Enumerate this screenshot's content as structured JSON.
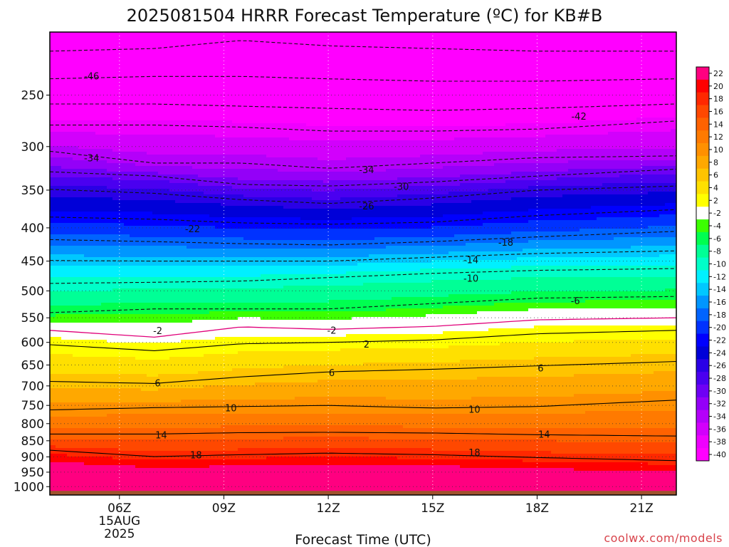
{
  "chart_data": {
    "type": "heatmap",
    "title": "2025081504 HRRR Forecast Temperature (ºC) for KB#B",
    "xlabel": "Forecast Time (UTC)",
    "ylabel": "",
    "credit": "coolwx.com/models",
    "x_ticks": [
      {
        "hour": 6,
        "label": "06Z",
        "sub": [
          "15AUG",
          "2025"
        ]
      },
      {
        "hour": 9,
        "label": "09Z"
      },
      {
        "hour": 12,
        "label": "12Z"
      },
      {
        "hour": 15,
        "label": "15Z"
      },
      {
        "hour": 18,
        "label": "18Z"
      },
      {
        "hour": 21,
        "label": "21Z"
      }
    ],
    "xlim": [
      4,
      22
    ],
    "y_ticks": [
      250,
      300,
      350,
      400,
      450,
      500,
      550,
      600,
      650,
      700,
      750,
      800,
      850,
      900,
      950,
      1000
    ],
    "ylim": [
      200,
      1030
    ],
    "y_scale": "log",
    "y_reversed": true,
    "surface_pressure": 1015,
    "surface_color": "#a0522d",
    "grid": true,
    "legend_location": "right",
    "colorbar": {
      "levels": [
        22,
        20,
        18,
        16,
        14,
        12,
        10,
        8,
        6,
        4,
        2,
        -2,
        -4,
        -6,
        -8,
        -10,
        -12,
        -14,
        -16,
        -18,
        -20,
        -22,
        -24,
        -26,
        -28,
        -30,
        -32,
        -34,
        -36,
        -38,
        -40
      ],
      "colors": [
        "#ff0080",
        "#ff0000",
        "#ff2800",
        "#ff4800",
        "#ff6200",
        "#ff7a00",
        "#ff9000",
        "#ffa800",
        "#ffc400",
        "#ffe000",
        "#ffff00",
        "#ffffff",
        "#3cff00",
        "#00ff50",
        "#00ff96",
        "#00ffc8",
        "#00f0ff",
        "#00c8ff",
        "#0096ff",
        "#0064ff",
        "#0032ff",
        "#0000ff",
        "#0000d8",
        "#2a00e6",
        "#4a00f0",
        "#6e00f5",
        "#9400f8",
        "#b400fa",
        "#d200fc",
        "#ee00fe",
        "#ff00ff"
      ]
    },
    "series": [
      {
        "x": [
          4,
          7,
          9.5,
          12,
          15,
          18,
          22
        ],
        "y": [
          575,
          589,
          568,
          573,
          567,
          554,
          550
        ],
        "temp": 0
      },
      {
        "x": [
          4,
          7,
          9.5,
          12,
          15,
          18,
          22
        ],
        "y": [
          605,
          618,
          603,
          600,
          595,
          582,
          575
        ],
        "temp": 2
      },
      {
        "x": [
          4,
          7,
          9.5,
          12,
          15,
          18,
          22
        ],
        "y": [
          689,
          694,
          678,
          666,
          660,
          652,
          642
        ],
        "temp": 6
      },
      {
        "x": [
          4,
          7,
          9.5,
          12,
          15,
          18,
          22
        ],
        "y": [
          762,
          756,
          753,
          750,
          757,
          753,
          736
        ],
        "temp": 10
      },
      {
        "x": [
          4,
          7,
          9.5,
          12,
          15,
          18,
          22
        ],
        "y": [
          830,
          830,
          826,
          825,
          827,
          832,
          836
        ],
        "temp": 14
      },
      {
        "x": [
          4,
          7,
          9.5,
          12,
          15,
          18,
          22
        ],
        "y": [
          879,
          899,
          893,
          888,
          893,
          902,
          912
        ],
        "temp": 18
      },
      {
        "x": [
          4,
          7,
          9.5,
          12,
          15,
          18,
          22
        ],
        "y": [
          540,
          533,
          533,
          533,
          523,
          513,
          510
        ],
        "temp": -6
      },
      {
        "x": [
          4,
          7,
          9.5,
          12,
          15,
          18,
          22
        ],
        "y": [
          487,
          485,
          483,
          477,
          470,
          465,
          462
        ],
        "temp": -10
      },
      {
        "x": [
          4,
          7,
          9.5,
          12,
          15,
          18,
          22
        ],
        "y": [
          449,
          450,
          450,
          450,
          444,
          438,
          434
        ],
        "temp": -14
      },
      {
        "x": [
          4,
          7,
          9.5,
          12,
          15,
          18,
          22
        ],
        "y": [
          417,
          420,
          423,
          425,
          420,
          413,
          405
        ],
        "temp": -18
      },
      {
        "x": [
          4,
          7,
          9.5,
          12,
          15,
          18,
          22
        ],
        "y": [
          385,
          388,
          393,
          395,
          392,
          383,
          375
        ],
        "temp": -22
      },
      {
        "x": [
          4,
          7,
          9.5,
          12,
          15,
          18,
          22
        ],
        "y": [
          349,
          354,
          362,
          367,
          360,
          350,
          345
        ],
        "temp": -26
      },
      {
        "x": [
          4,
          7,
          9.5,
          12,
          15,
          18,
          22
        ],
        "y": [
          328,
          333,
          343,
          345,
          340,
          333,
          325
        ],
        "temp": -30
      },
      {
        "x": [
          4,
          7,
          9.5,
          12,
          15,
          18,
          22
        ],
        "y": [
          305,
          318,
          318,
          324,
          318,
          312,
          310
        ],
        "temp": -34
      },
      {
        "x": [
          4,
          7,
          9.5,
          12,
          15,
          18,
          22
        ],
        "y": [
          278,
          278,
          280,
          284,
          284,
          282,
          274
        ],
        "temp": -38
      },
      {
        "x": [
          4,
          7,
          9.5,
          12,
          15,
          18,
          22
        ],
        "y": [
          258,
          258,
          260,
          262,
          264,
          262,
          258
        ],
        "temp": -42
      },
      {
        "x": [
          4,
          7,
          9.5,
          12,
          15,
          18,
          22
        ],
        "y": [
          236,
          234,
          234,
          236,
          238,
          238,
          236
        ],
        "temp": -46
      },
      {
        "x": [
          4,
          7,
          9.5,
          12,
          15,
          18,
          22
        ],
        "y": [
          214,
          212,
          206,
          210,
          212,
          214,
          214
        ],
        "temp": -50
      }
    ],
    "contour_labels": [
      {
        "text": "-46",
        "x": 5.2,
        "y": 234
      },
      {
        "text": "-42",
        "x": 19.2,
        "y": 270
      },
      {
        "text": "-34",
        "x": 5.2,
        "y": 313
      },
      {
        "text": "-34",
        "x": 13.1,
        "y": 326
      },
      {
        "text": "-30",
        "x": 14.1,
        "y": 346
      },
      {
        "text": "-26",
        "x": 13.1,
        "y": 371
      },
      {
        "text": "-22",
        "x": 8.1,
        "y": 402
      },
      {
        "text": "-18",
        "x": 17.1,
        "y": 422
      },
      {
        "text": "-14",
        "x": 16.1,
        "y": 449
      },
      {
        "text": "-10",
        "x": 16.1,
        "y": 479
      },
      {
        "text": "-6",
        "x": 19.1,
        "y": 519
      },
      {
        "text": "-2",
        "x": 7.1,
        "y": 577
      },
      {
        "text": "-2",
        "x": 12.1,
        "y": 576
      },
      {
        "text": "2",
        "x": 13.1,
        "y": 605
      },
      {
        "text": "6",
        "x": 7.1,
        "y": 694
      },
      {
        "text": "6",
        "x": 12.1,
        "y": 669
      },
      {
        "text": "6",
        "x": 18.1,
        "y": 658
      },
      {
        "text": "10",
        "x": 9.2,
        "y": 758
      },
      {
        "text": "10",
        "x": 16.2,
        "y": 762
      },
      {
        "text": "14",
        "x": 7.2,
        "y": 834
      },
      {
        "text": "14",
        "x": 18.2,
        "y": 832
      },
      {
        "text": "18",
        "x": 8.2,
        "y": 895
      },
      {
        "text": "18",
        "x": 16.2,
        "y": 888
      }
    ]
  }
}
